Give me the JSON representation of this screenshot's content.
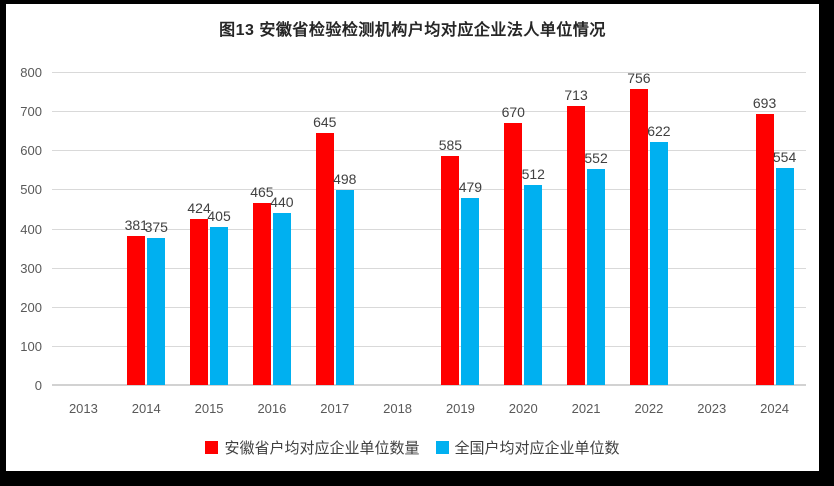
{
  "chart_data": {
    "type": "bar",
    "title": "图13  安徽省检验检测机构户均对应企业法人单位情况",
    "categories": [
      "2013",
      "2014",
      "2015",
      "2016",
      "2017",
      "2018",
      "2019",
      "2020",
      "2021",
      "2022",
      "2023",
      "2024"
    ],
    "series": [
      {
        "name": "安徽省户均对应企业单位数量",
        "color": "#ff0000",
        "values": [
          null,
          381,
          424,
          465,
          645,
          null,
          585,
          670,
          713,
          756,
          null,
          693
        ]
      },
      {
        "name": "全国户均对应企业单位数",
        "color": "#00b0f0",
        "values": [
          null,
          375,
          405,
          440,
          498,
          null,
          479,
          512,
          552,
          622,
          null,
          554
        ]
      }
    ],
    "ylim": [
      0,
      800
    ],
    "ytick_interval": 100,
    "yticks": [
      0,
      100,
      200,
      300,
      400,
      500,
      600,
      700,
      800
    ],
    "xlabel": "",
    "ylabel": "",
    "grid": true,
    "legend_position": "bottom",
    "data_labels": true
  },
  "colors": {
    "frame_border": "#000000",
    "background": "#ffffff",
    "gridline": "#d9d9d9",
    "tick_label": "#595959",
    "data_label": "#404040",
    "title": "#262626",
    "series_anhui": "#ff0000",
    "series_national": "#00b0f0"
  }
}
